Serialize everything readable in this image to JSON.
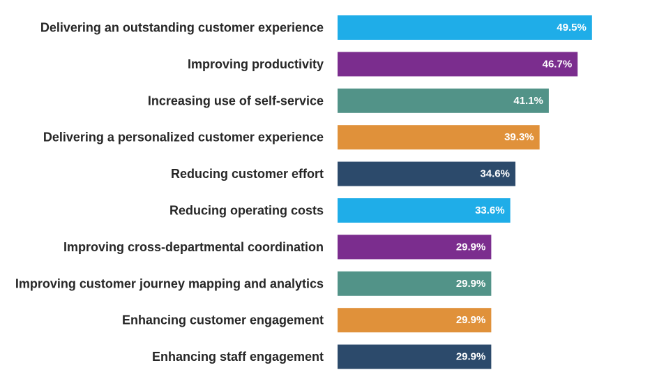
{
  "chart_data": {
    "type": "bar",
    "orientation": "horizontal",
    "title": "",
    "xlabel": "",
    "ylabel": "",
    "xlim": [
      0,
      50
    ],
    "grid": false,
    "legend": "none",
    "value_suffix": "%",
    "categories": [
      "Delivering an outstanding customer experience",
      "Improving productivity",
      "Increasing use of self-service",
      "Delivering a personalized customer experience",
      "Reducing customer effort",
      "Reducing operating costs",
      "Improving cross-departmental coordination",
      "Improving customer journey mapping and analytics",
      "Enhancing customer engagement",
      "Enhancing staff engagement"
    ],
    "values": [
      49.5,
      46.7,
      41.1,
      39.3,
      34.6,
      33.6,
      29.9,
      29.9,
      29.9,
      29.9
    ],
    "value_labels": [
      "49.5%",
      "46.7%",
      "41.1%",
      "39.3%",
      "34.6%",
      "33.6%",
      "29.9%",
      "29.9%",
      "29.9%",
      "29.9%"
    ],
    "colors": [
      "#1fade8",
      "#7b2d8e",
      "#529388",
      "#e0913a",
      "#2c4a6b",
      "#1fade8",
      "#7b2d8e",
      "#529388",
      "#e0913a",
      "#2c4a6b"
    ]
  }
}
